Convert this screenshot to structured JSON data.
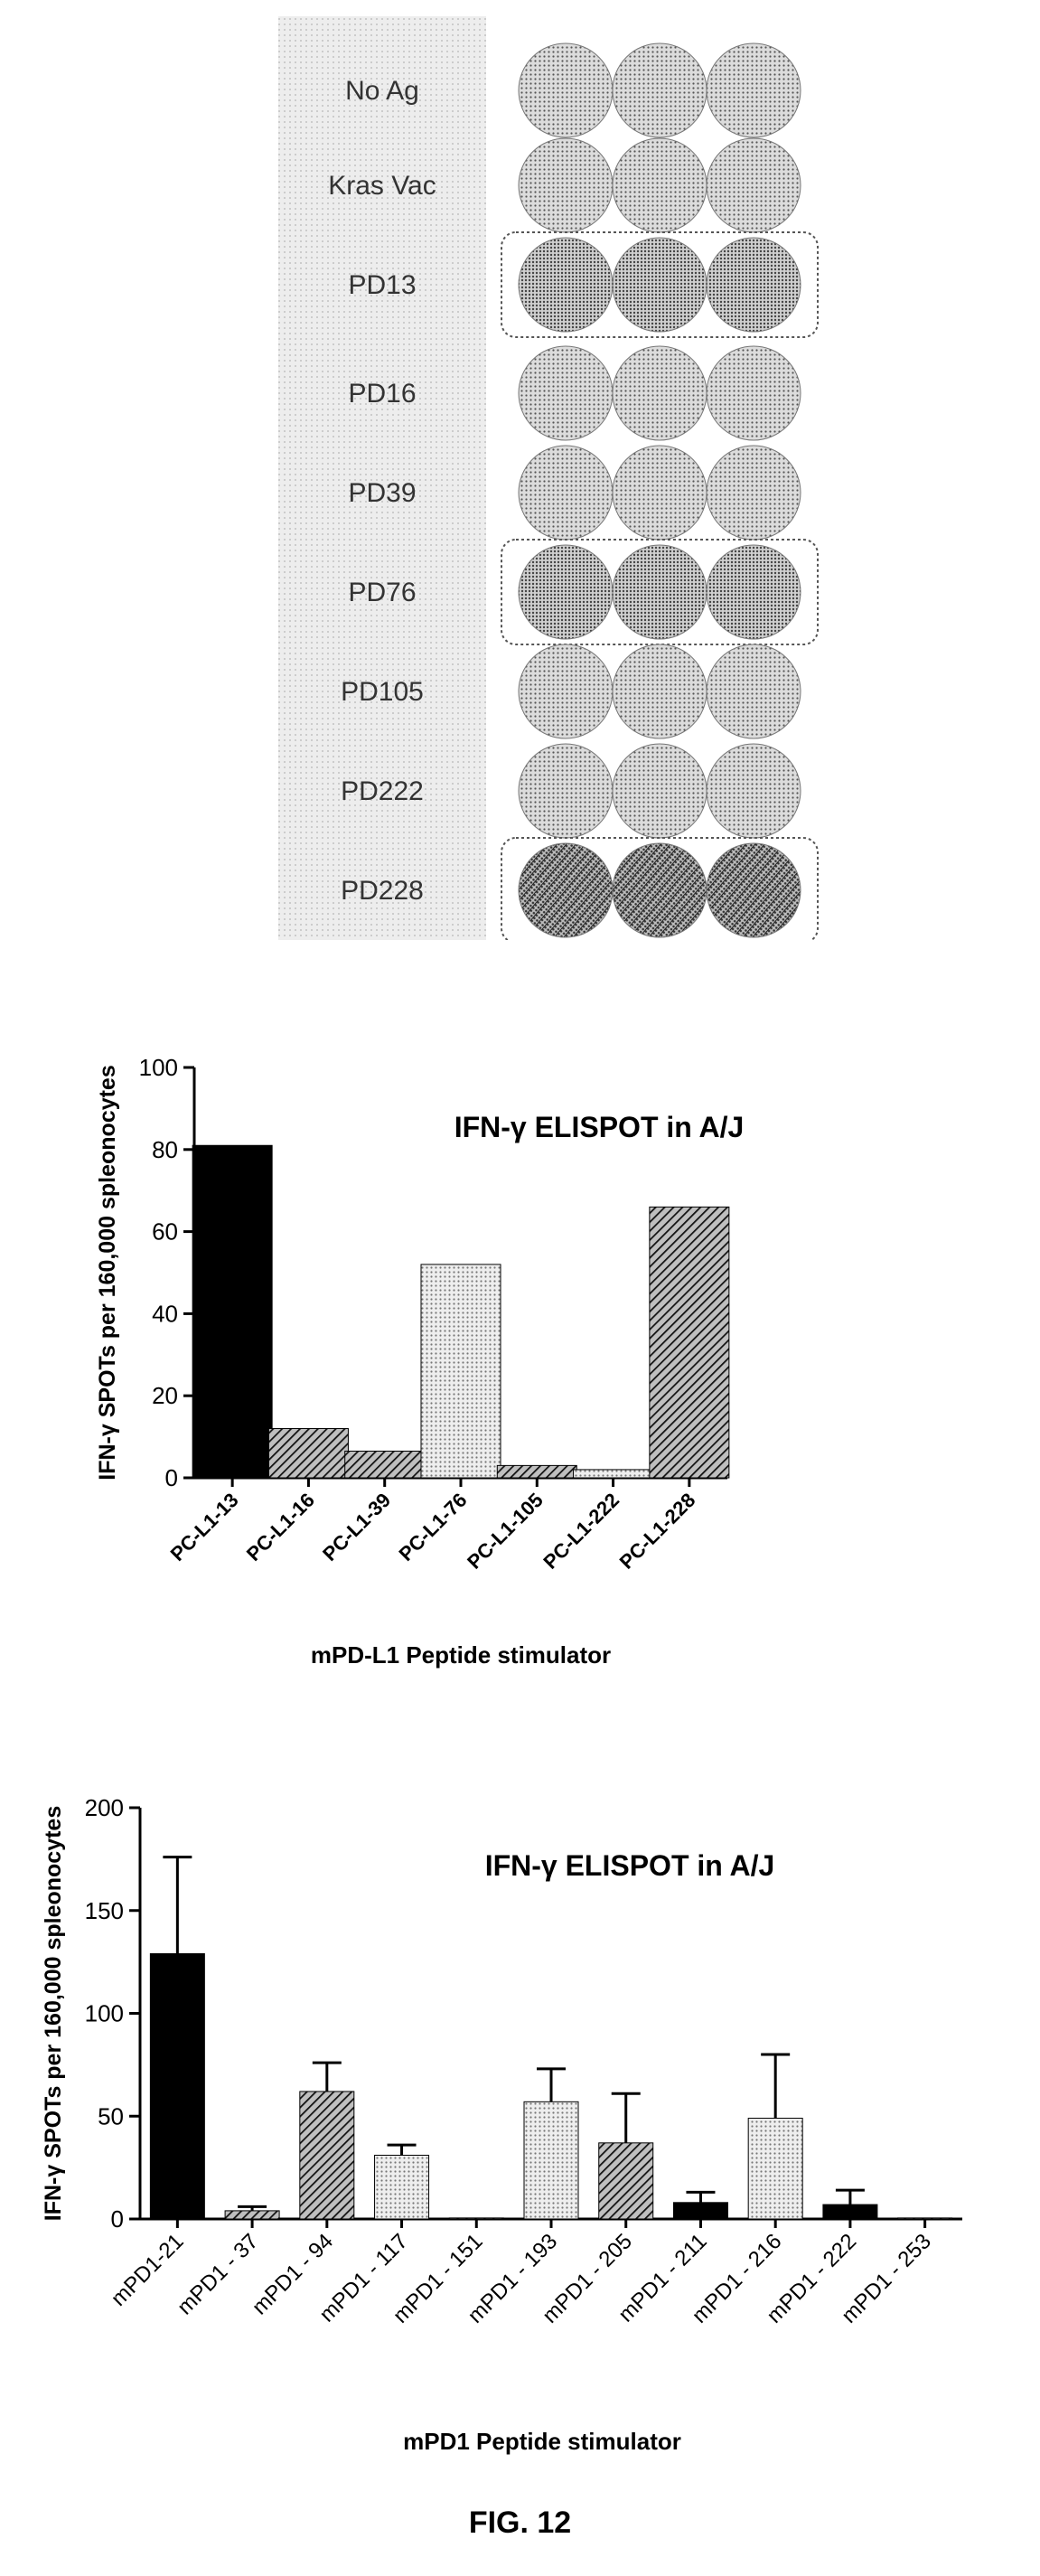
{
  "panel_a": {
    "rows": [
      {
        "label": "No Ag",
        "outlined": false,
        "tone": "light"
      },
      {
        "label": "Kras Vac",
        "outlined": false,
        "tone": "light"
      },
      {
        "label": "PD13",
        "outlined": true,
        "tone": "medium"
      },
      {
        "label": "PD16",
        "outlined": false,
        "tone": "light"
      },
      {
        "label": "PD39",
        "outlined": false,
        "tone": "light"
      },
      {
        "label": "PD76",
        "outlined": true,
        "tone": "medium"
      },
      {
        "label": "PD105",
        "outlined": false,
        "tone": "light"
      },
      {
        "label": "PD222",
        "outlined": false,
        "tone": "light"
      },
      {
        "label": "PD228",
        "outlined": true,
        "tone": "dark"
      }
    ]
  },
  "figure_label": "FIG. 12",
  "colors": {
    "ink": "#000000",
    "dot": "#555555",
    "label_bg": "#e6e6e6"
  },
  "chart_data": [
    {
      "type": "bar",
      "title": "IFN-γ  ELISPOT in A/J",
      "xlabel": "mPD-L1 Peptide stimulator",
      "ylabel": "IFN-γ SPOTs per 160,000 spleonocytes",
      "ylim": [
        0,
        100
      ],
      "yticks": [
        0,
        20,
        40,
        60,
        80,
        100
      ],
      "categories": [
        "PC-L1-13",
        "PC-L1-16",
        "PC-L1-39",
        "PC-L1-76",
        "PC-L1-105",
        "PC-L1-222",
        "PC-L1-228"
      ],
      "values": [
        81,
        12,
        6.5,
        52,
        3,
        2,
        66
      ],
      "patterns": [
        "solid",
        "diag",
        "diag",
        "dots",
        "diag",
        "dots",
        "diag"
      ]
    },
    {
      "type": "bar",
      "title": "IFN-γ  ELISPOT in A/J",
      "xlabel": "mPD1 Peptide stimulator",
      "ylabel": "IFN-γ SPOTs per 160,000 spleonocytes",
      "ylim": [
        0,
        200
      ],
      "yticks": [
        0,
        50,
        100,
        150,
        200
      ],
      "categories": [
        "mPD1-21",
        "mPD1 - 37",
        "mPD1 - 94",
        "mPD1 - 117",
        "mPD1 - 151",
        "mPD1 - 193",
        "mPD1 - 205",
        "mPD1 - 211",
        "mPD1 - 216",
        "mPD1 - 222",
        "mPD1 - 253"
      ],
      "values": [
        129,
        4,
        62,
        31,
        0.5,
        57,
        37,
        8,
        49,
        7,
        0.5
      ],
      "errors": [
        47,
        2,
        14,
        5,
        0,
        16,
        24,
        5,
        31,
        7,
        0
      ],
      "patterns": [
        "solid",
        "diag",
        "diag",
        "dots",
        "diag",
        "dots",
        "diag",
        "solid",
        "dots",
        "solid",
        "diag"
      ]
    }
  ]
}
